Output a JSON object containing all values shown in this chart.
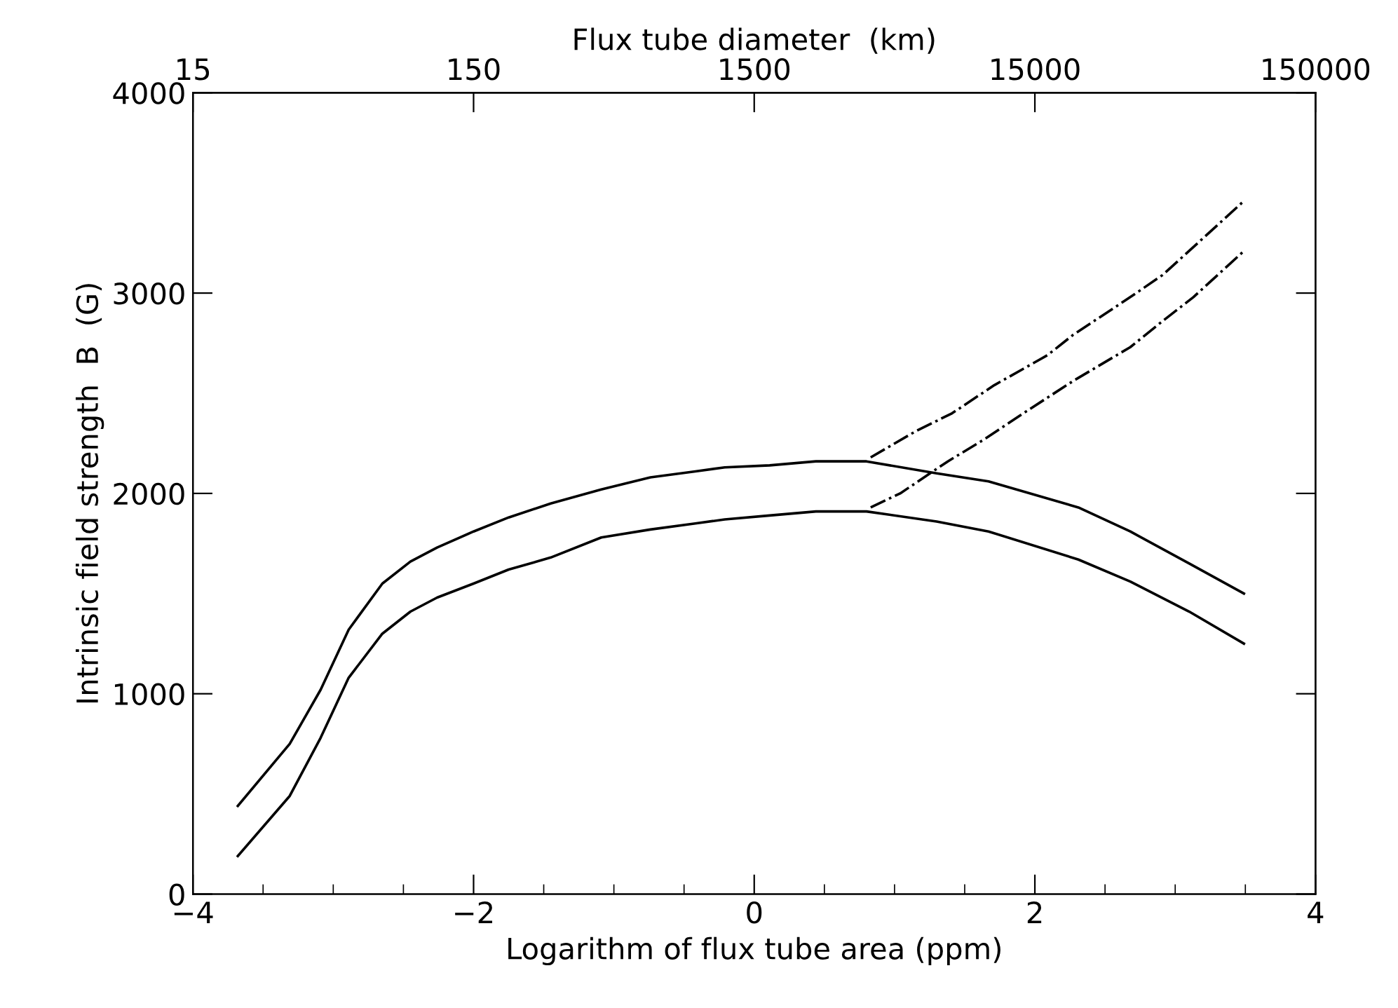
{
  "chart_data": {
    "type": "line",
    "xlabel": "Logarithm of flux tube area (ppm)",
    "ylabel": "Intrinsic field strength  B  (G)",
    "x2label": "Flux tube diameter  (km)",
    "xlim": [
      -4,
      4
    ],
    "xticks": [
      {
        "value": -4,
        "label": "−4"
      },
      {
        "value": -2,
        "label": "−2"
      },
      0,
      2,
      4
    ],
    "x2lim": [
      15,
      150000
    ],
    "x2ticks": [
      15,
      150,
      1500,
      15000,
      150000
    ],
    "log": "x2",
    "ylim": [
      0,
      4000
    ],
    "yticks": [
      0,
      1000,
      2000,
      3000,
      4000
    ],
    "grid": false,
    "legend": false,
    "marker": "none",
    "series": [
      {
        "color": "#000000",
        "line_style": "solid",
        "x": [
          -3.68,
          -3.31,
          -3.09,
          -2.89,
          -2.65,
          -2.45,
          -2.26,
          -2.0,
          -1.75,
          -1.45,
          -1.09,
          -0.74,
          -0.42,
          -0.21,
          0.11,
          0.44,
          0.8,
          1.3,
          1.67,
          2.31,
          2.68,
          3.1,
          3.49
        ],
        "values": [
          440,
          750,
          1020,
          1320,
          1550,
          1660,
          1730,
          1810,
          1880,
          1950,
          2020,
          2080,
          2110,
          2130,
          2140,
          2160,
          2160,
          2100,
          2060,
          1930,
          1810,
          1650,
          1500
        ]
      },
      {
        "color": "#000000",
        "line_style": "solid",
        "x": [
          -3.68,
          -3.31,
          -3.09,
          -2.89,
          -2.65,
          -2.45,
          -2.26,
          -2.0,
          -1.75,
          -1.45,
          -1.09,
          -0.74,
          -0.42,
          -0.21,
          0.11,
          0.44,
          0.8,
          1.3,
          1.67,
          2.31,
          2.68,
          3.1,
          3.49
        ],
        "values": [
          190,
          490,
          780,
          1080,
          1300,
          1410,
          1480,
          1550,
          1620,
          1680,
          1780,
          1820,
          1850,
          1870,
          1890,
          1910,
          1910,
          1860,
          1810,
          1670,
          1560,
          1410,
          1250
        ]
      },
      {
        "color": "#000000",
        "line_style": "dashdot",
        "x": [
          0.83,
          1.15,
          1.41,
          1.71,
          2.09,
          2.27,
          2.68,
          2.91,
          3.13,
          3.49
        ],
        "values": [
          2180,
          2310,
          2400,
          2540,
          2690,
          2790,
          2980,
          3090,
          3230,
          3460
        ]
      },
      {
        "color": "#000000",
        "line_style": "dashdot",
        "x": [
          0.83,
          1.04,
          1.38,
          1.64,
          1.94,
          2.27,
          2.68,
          2.91,
          3.13,
          3.49
        ],
        "values": [
          1930,
          2000,
          2160,
          2270,
          2410,
          2560,
          2730,
          2860,
          2980,
          3210
        ]
      }
    ]
  }
}
